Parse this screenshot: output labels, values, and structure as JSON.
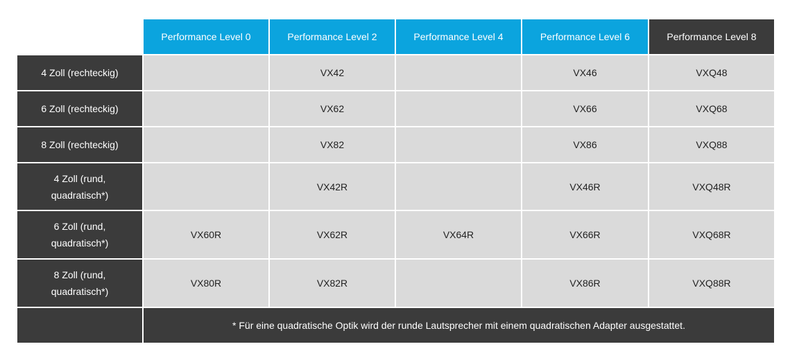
{
  "table": {
    "columns": [
      "Performance Level 0",
      "Performance Level 2",
      "Performance Level 4",
      "Performance Level 6",
      "Performance Level 8"
    ],
    "rows": [
      {
        "label": "4 Zoll (rechteckig)",
        "cells": [
          null,
          "VX42",
          null,
          "VX46",
          "VXQ48"
        ]
      },
      {
        "label": "6 Zoll (rechteckig)",
        "cells": [
          null,
          "VX62",
          null,
          "VX66",
          "VXQ68"
        ]
      },
      {
        "label": "8 Zoll (rechteckig)",
        "cells": [
          null,
          "VX82",
          null,
          "VX86",
          "VXQ88"
        ]
      },
      {
        "label": "4 Zoll (rund, quadratisch*)",
        "cells": [
          null,
          "VX42R",
          null,
          "VX46R",
          "VXQ48R"
        ]
      },
      {
        "label": "6 Zoll (rund, quadratisch*)",
        "cells": [
          "VX60R",
          "VX62R",
          "VX64R",
          "VX66R",
          "VXQ68R"
        ]
      },
      {
        "label": "8 Zoll (rund, quadratisch*)",
        "cells": [
          "VX80R",
          "VX82R",
          null,
          "VX86R",
          "VXQ88R"
        ]
      }
    ],
    "footnote": "* Für eine quadratische Optik wird der runde Lautsprecher mit einem quadratischen Adapter ausgestattet."
  }
}
